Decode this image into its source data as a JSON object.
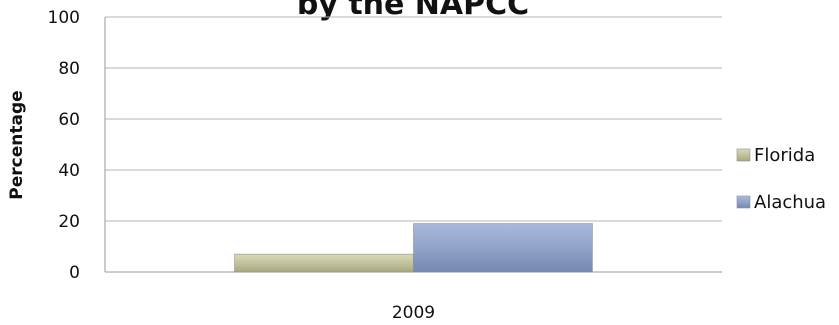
{
  "chart_data": {
    "type": "bar",
    "title": "by the NAPCC",
    "ylabel": "Percentage",
    "xlabel": "",
    "ylim": [
      0,
      100
    ],
    "yticks": [
      0,
      20,
      40,
      60,
      80,
      100
    ],
    "grid": true,
    "legend_position": "right",
    "categories": [
      "2009"
    ],
    "series": [
      {
        "name": "Florida",
        "values": [
          7
        ],
        "color": "#c2c39c"
      },
      {
        "name": "Alachua",
        "values": [
          19
        ],
        "color": "#91a3c9"
      }
    ]
  }
}
